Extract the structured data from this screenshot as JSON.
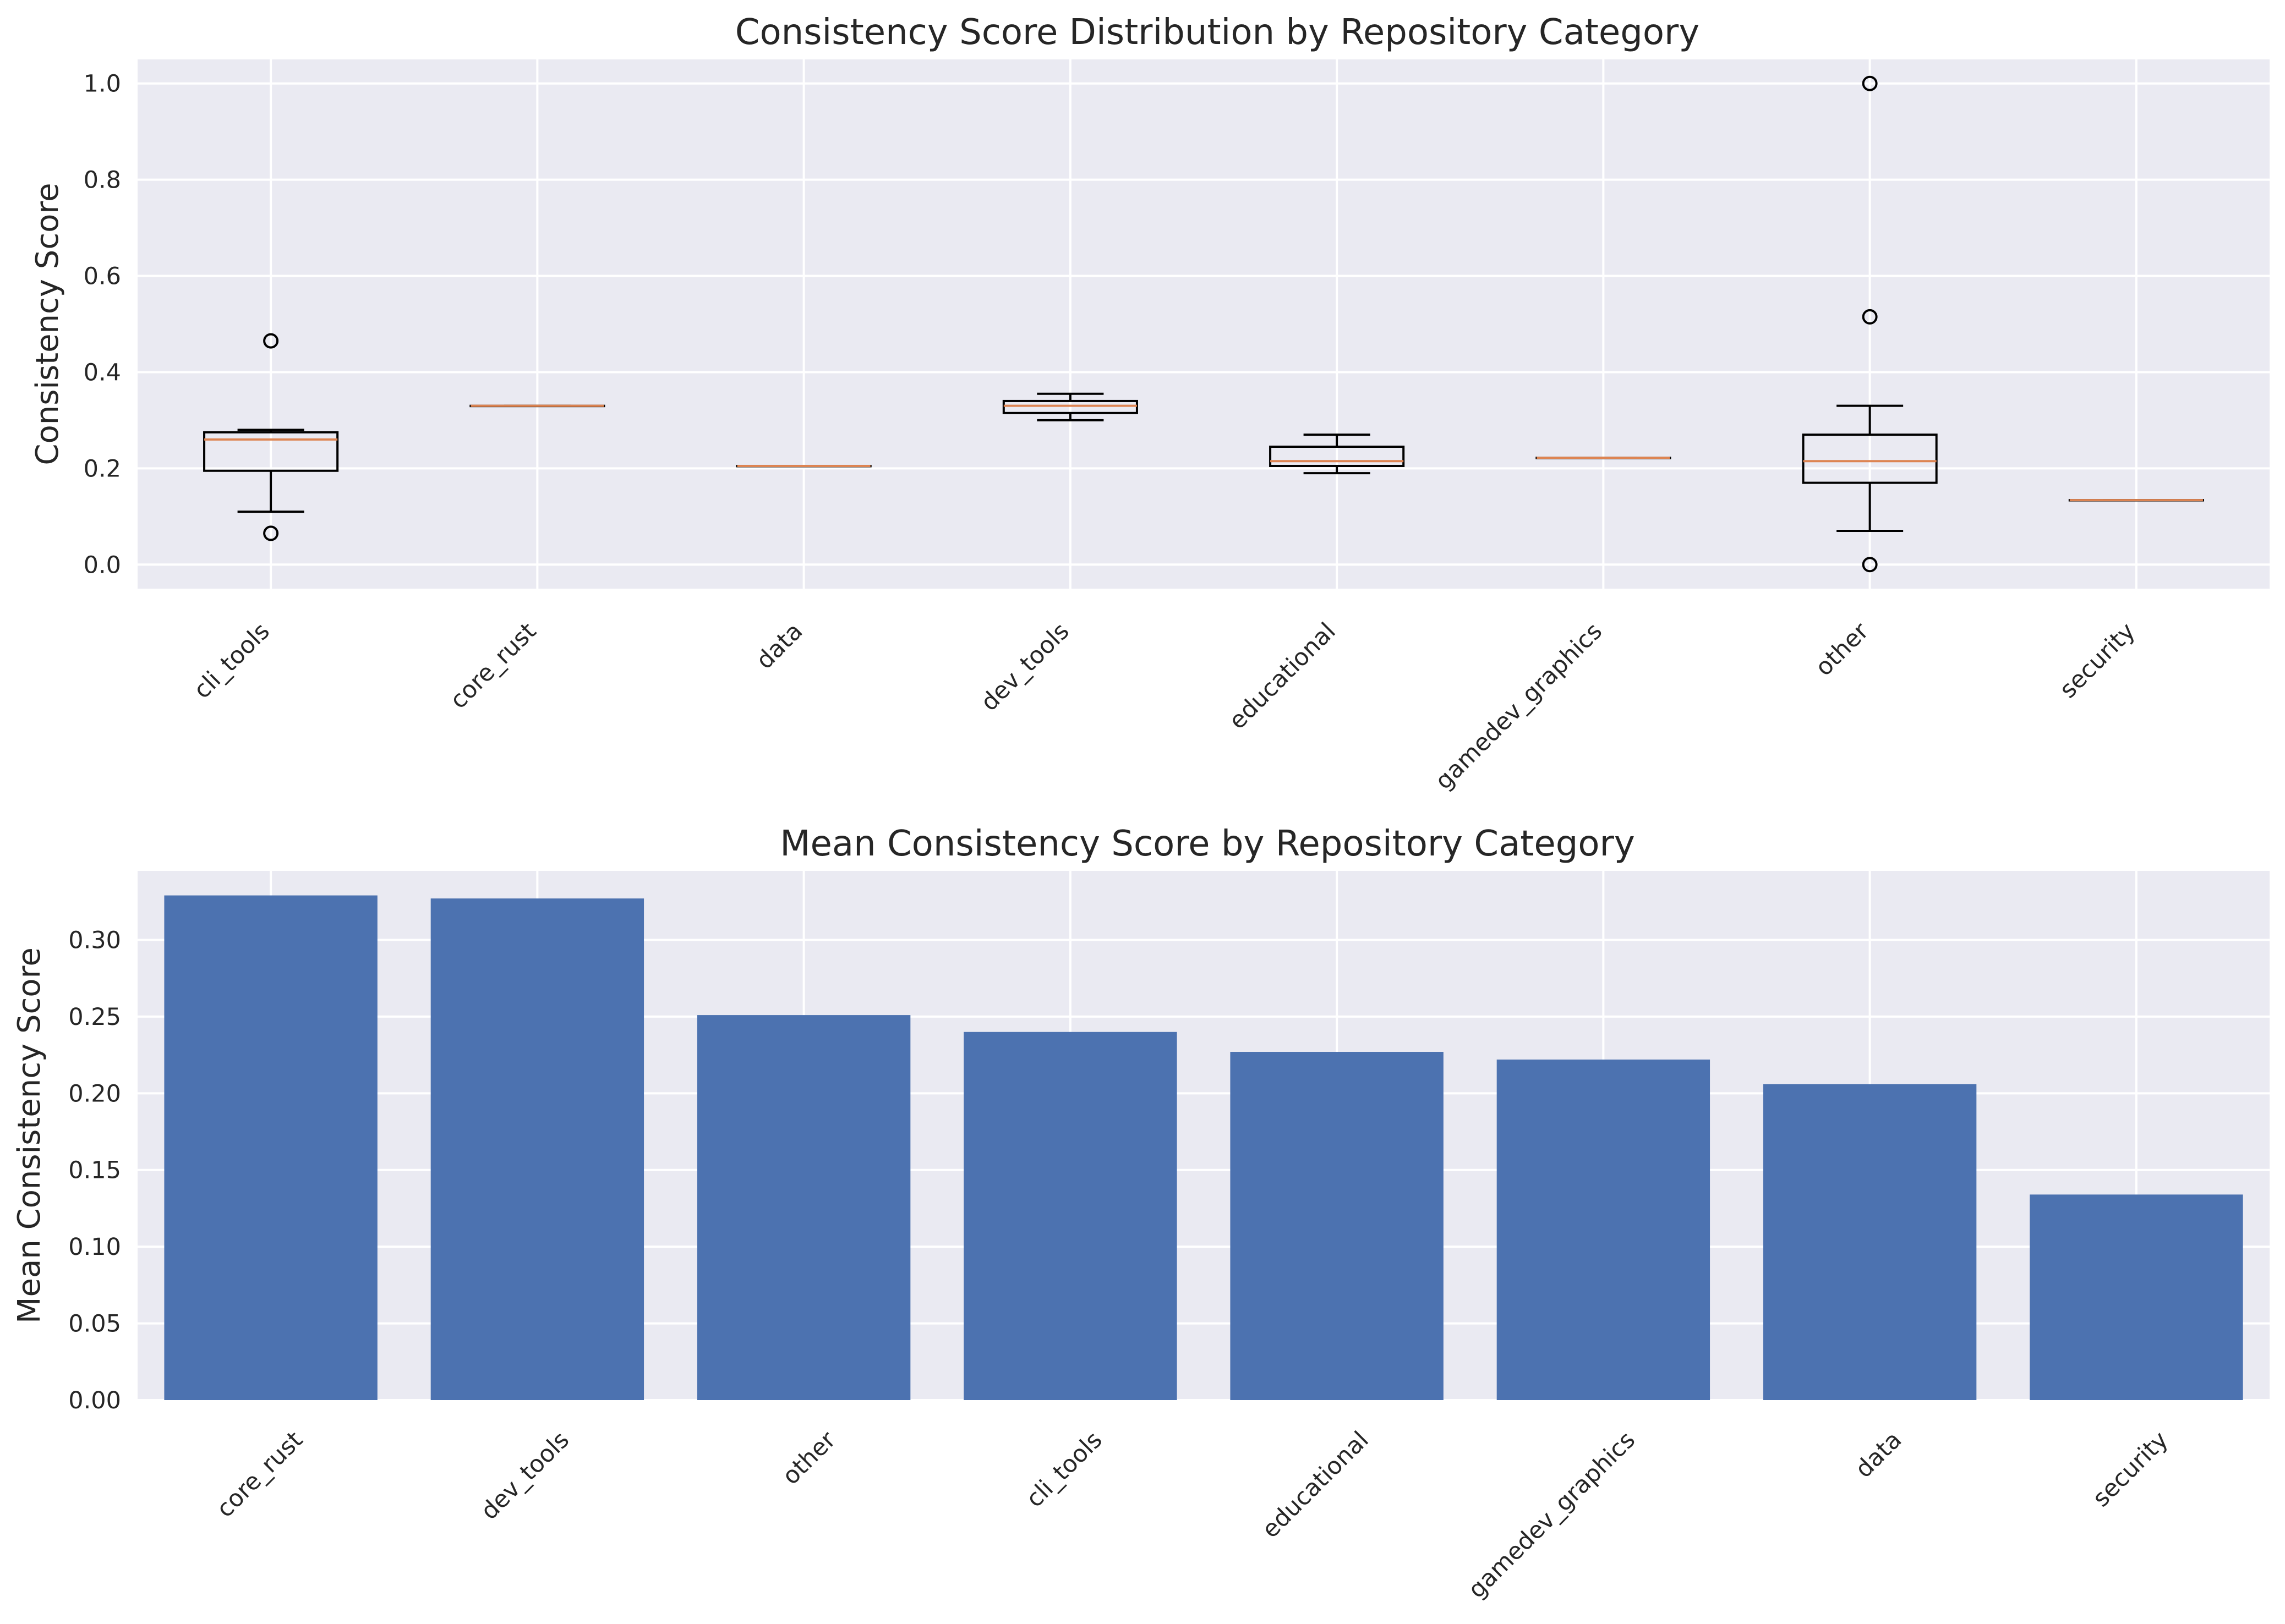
{
  "chart_data": [
    {
      "type": "box",
      "title": "Consistency Score Distribution by Repository Category",
      "xlabel": "",
      "ylabel": "Consistency Score",
      "ylim": [
        -0.05,
        1.05
      ],
      "yticks": [
        0.0,
        0.2,
        0.4,
        0.6,
        0.8,
        1.0
      ],
      "ytick_labels": [
        "0.0",
        "0.2",
        "0.4",
        "0.6",
        "0.8",
        "1.0"
      ],
      "grid": true,
      "categories": [
        "cli_tools",
        "core_rust",
        "data",
        "dev_tools",
        "educational",
        "gamedev_graphics",
        "other",
        "security"
      ],
      "boxes": [
        {
          "whislo": 0.11,
          "q1": 0.195,
          "med": 0.26,
          "q3": 0.275,
          "whishi": 0.28,
          "fliers": [
            0.065,
            0.465
          ]
        },
        {
          "whislo": 0.33,
          "q1": 0.33,
          "med": 0.33,
          "q3": 0.33,
          "whishi": 0.33,
          "fliers": []
        },
        {
          "whislo": 0.205,
          "q1": 0.205,
          "med": 0.205,
          "q3": 0.205,
          "whishi": 0.205,
          "fliers": []
        },
        {
          "whislo": 0.3,
          "q1": 0.315,
          "med": 0.33,
          "q3": 0.34,
          "whishi": 0.355,
          "fliers": []
        },
        {
          "whislo": 0.19,
          "q1": 0.205,
          "med": 0.215,
          "q3": 0.245,
          "whishi": 0.27,
          "fliers": []
        },
        {
          "whislo": 0.222,
          "q1": 0.222,
          "med": 0.222,
          "q3": 0.222,
          "whishi": 0.222,
          "fliers": []
        },
        {
          "whislo": 0.07,
          "q1": 0.17,
          "med": 0.215,
          "q3": 0.27,
          "whishi": 0.33,
          "fliers": [
            0.0,
            0.515,
            1.0
          ]
        },
        {
          "whislo": 0.134,
          "q1": 0.134,
          "med": 0.134,
          "q3": 0.134,
          "whishi": 0.134,
          "fliers": []
        }
      ]
    },
    {
      "type": "bar",
      "title": "Mean Consistency Score by Repository Category",
      "xlabel": "",
      "ylabel": "Mean Consistency Score",
      "ylim": [
        0,
        0.345
      ],
      "yticks": [
        0.0,
        0.05,
        0.1,
        0.15,
        0.2,
        0.25,
        0.3
      ],
      "ytick_labels": [
        "0.00",
        "0.05",
        "0.10",
        "0.15",
        "0.20",
        "0.25",
        "0.30"
      ],
      "grid": true,
      "bar_color": "#4c72b0",
      "categories": [
        "core_rust",
        "dev_tools",
        "other",
        "cli_tools",
        "educational",
        "gamedev_graphics",
        "data",
        "security"
      ],
      "values": [
        0.329,
        0.327,
        0.251,
        0.24,
        0.227,
        0.222,
        0.206,
        0.134
      ]
    }
  ],
  "colors": {
    "background": "#eaeaf2",
    "grid": "#ffffff",
    "median": "#dd8452",
    "bar": "#4c72b0",
    "box_edge": "#000000"
  }
}
